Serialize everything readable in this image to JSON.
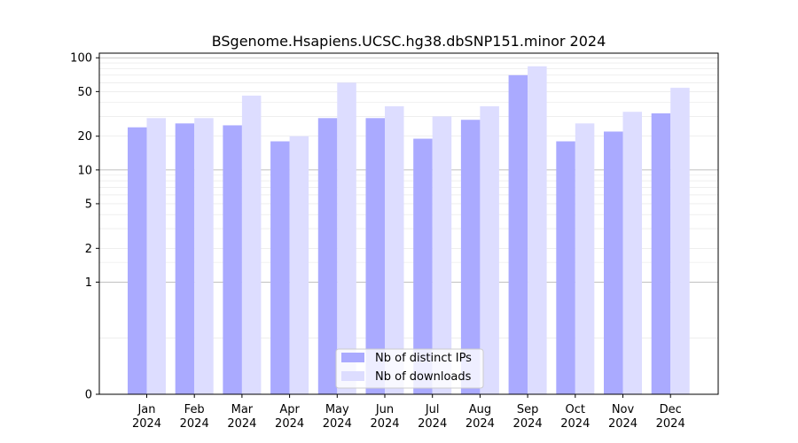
{
  "chart_data": {
    "type": "bar",
    "title": "BSgenome.Hsapiens.UCSC.hg38.dbSNP151.minor 2024",
    "xlabel": "",
    "ylabel": "",
    "yscale": "symlog",
    "ylim": [
      0,
      110
    ],
    "yticks": [
      0,
      1,
      2,
      5,
      10,
      20,
      50,
      100
    ],
    "ytick_labels": [
      "0",
      "1",
      "2",
      "5",
      "10",
      "20",
      "50",
      "100"
    ],
    "categories": [
      "Jan",
      "Feb",
      "Mar",
      "Apr",
      "May",
      "Jun",
      "Jul",
      "Aug",
      "Sep",
      "Oct",
      "Nov",
      "Dec"
    ],
    "category_sublabel": "2024",
    "series": [
      {
        "name": "Nb of distinct IPs",
        "color": "#aaaaff",
        "values": [
          24,
          26,
          25,
          18,
          29,
          29,
          19,
          28,
          70,
          18,
          22,
          32
        ]
      },
      {
        "name": "Nb of downloads",
        "color": "#ddddff",
        "values": [
          29,
          29,
          46,
          20,
          60,
          37,
          30,
          37,
          84,
          26,
          33,
          54
        ]
      }
    ],
    "grid": true,
    "legend_position": "bottom-center"
  }
}
